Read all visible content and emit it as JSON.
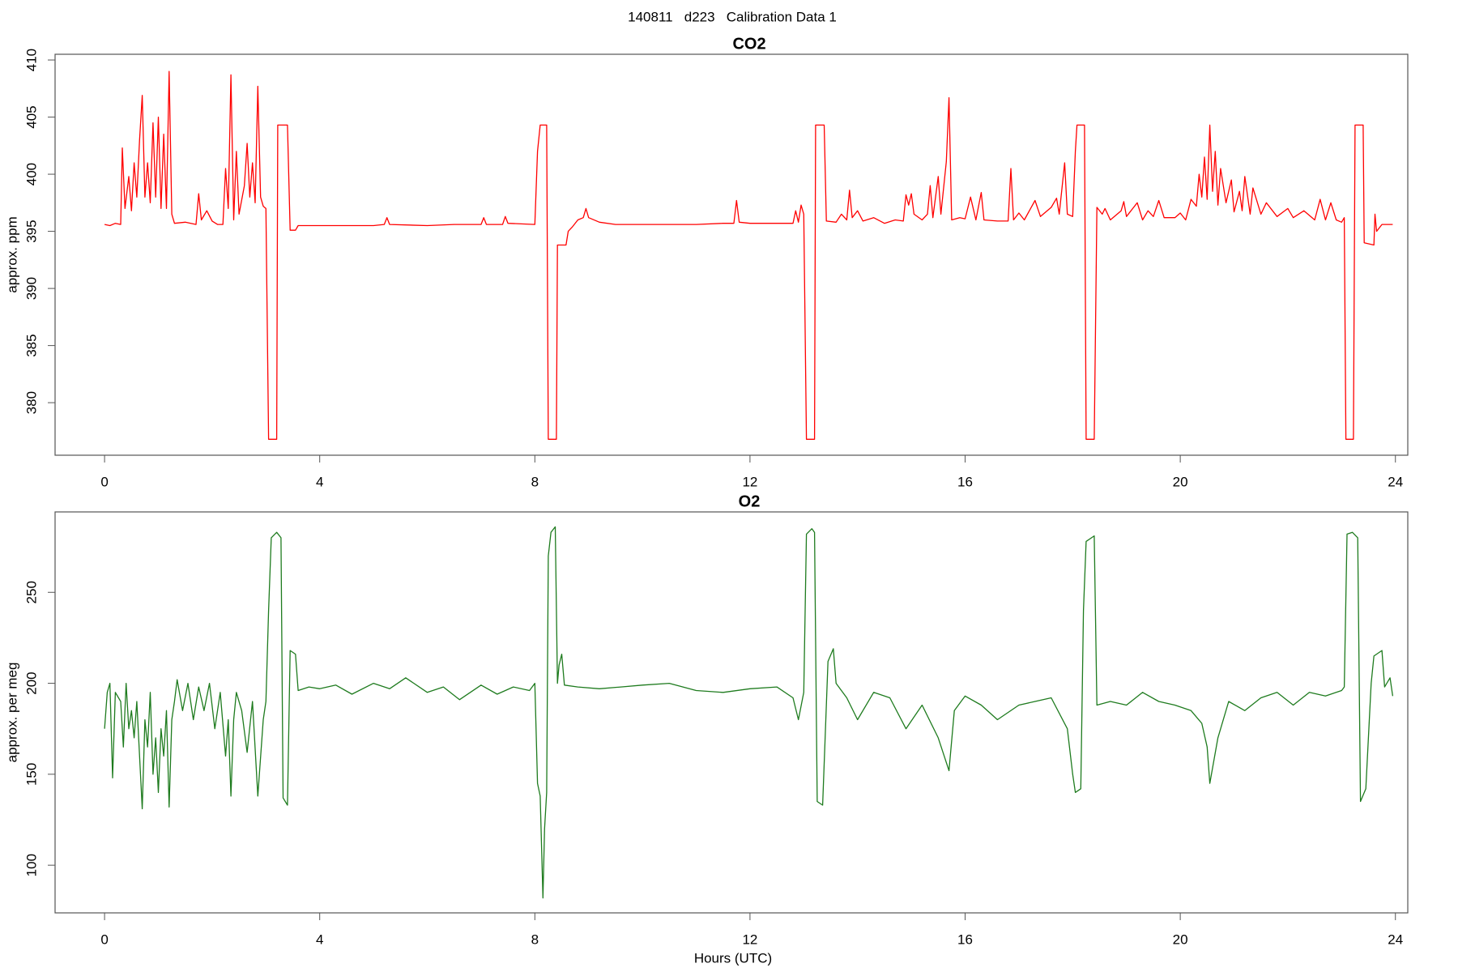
{
  "title": "140811   d223   Calibration Data 1",
  "chart_data": [
    {
      "type": "line",
      "title": "CO2",
      "ylabel": "approx. ppm",
      "xlim": [
        -0.92,
        24.23
      ],
      "xticks": [
        0,
        4,
        8,
        12,
        16,
        20,
        24
      ],
      "ylim": [
        375.4,
        410.5
      ],
      "yticks": [
        380,
        385,
        390,
        395,
        400,
        405,
        410
      ],
      "x": [
        0,
        0.1,
        0.2,
        0.3,
        0.33,
        0.38,
        0.45,
        0.5,
        0.55,
        0.6,
        0.65,
        0.7,
        0.75,
        0.8,
        0.85,
        0.9,
        0.95,
        1.0,
        1.05,
        1.1,
        1.15,
        1.2,
        1.25,
        1.3,
        1.5,
        1.7,
        1.75,
        1.8,
        1.9,
        2.0,
        2.1,
        2.2,
        2.25,
        2.3,
        2.35,
        2.4,
        2.45,
        2.5,
        2.6,
        2.65,
        2.7,
        2.75,
        2.8,
        2.85,
        2.9,
        2.95,
        3.0,
        3.05,
        3.2,
        3.22,
        3.4,
        3.45,
        3.55,
        3.6,
        4.0,
        4.5,
        5.0,
        5.2,
        5.25,
        5.3,
        6,
        6.5,
        7.0,
        7.05,
        7.1,
        7.4,
        7.45,
        7.5,
        8.0,
        8.05,
        8.1,
        8.22,
        8.25,
        8.4,
        8.42,
        8.58,
        8.62,
        8.7,
        8.8,
        8.9,
        8.95,
        9.0,
        9.2,
        9.5,
        10,
        10.5,
        11,
        11.5,
        11.7,
        11.75,
        11.8,
        12.0,
        12.5,
        12.8,
        12.85,
        12.9,
        12.95,
        13.0,
        13.05,
        13.2,
        13.22,
        13.38,
        13.42,
        13.6,
        13.7,
        13.8,
        13.85,
        13.9,
        14.0,
        14.1,
        14.3,
        14.5,
        14.7,
        14.85,
        14.9,
        14.95,
        15.0,
        15.05,
        15.2,
        15.3,
        15.35,
        15.4,
        15.5,
        15.55,
        15.65,
        15.7,
        15.75,
        15.9,
        16.0,
        16.1,
        16.2,
        16.3,
        16.35,
        16.6,
        16.8,
        16.85,
        16.9,
        17.0,
        17.1,
        17.3,
        17.4,
        17.6,
        17.7,
        17.75,
        17.85,
        17.9,
        18.0,
        18.05,
        18.08,
        18.22,
        18.25,
        18.4,
        18.45,
        18.55,
        18.6,
        18.7,
        18.9,
        18.95,
        19.0,
        19.2,
        19.3,
        19.4,
        19.5,
        19.6,
        19.7,
        19.9,
        20.0,
        20.1,
        20.2,
        20.3,
        20.35,
        20.4,
        20.45,
        20.5,
        20.55,
        20.6,
        20.65,
        20.7,
        20.75,
        20.85,
        20.95,
        21.0,
        21.1,
        21.15,
        21.2,
        21.3,
        21.35,
        21.5,
        21.6,
        21.8,
        22.0,
        22.1,
        22.3,
        22.5,
        22.6,
        22.7,
        22.8,
        22.9,
        23.0,
        23.05,
        23.08,
        23.22,
        23.25,
        23.4,
        23.42,
        23.6,
        23.62,
        23.65,
        23.7,
        23.75,
        23.95
      ],
      "series": [
        {
          "color": "#ff0000",
          "values": [
            395.6,
            395.5,
            395.7,
            395.6,
            402.3,
            397,
            399.8,
            396.8,
            401,
            398,
            403,
            406.9,
            398,
            401,
            397.5,
            404.5,
            398,
            405,
            397,
            403.5,
            397,
            409,
            396.5,
            395.7,
            395.8,
            395.6,
            398.3,
            396,
            396.8,
            395.9,
            395.6,
            395.6,
            400.5,
            397,
            408.7,
            396,
            402,
            396.5,
            399,
            402.7,
            398,
            401,
            397.5,
            407.7,
            398,
            397.2,
            397,
            376.8,
            376.8,
            404.3,
            404.3,
            395.1,
            395.1,
            395.5,
            395.5,
            395.5,
            395.5,
            395.6,
            396.2,
            395.6,
            395.5,
            395.6,
            395.6,
            396.2,
            395.6,
            395.6,
            396.3,
            395.7,
            395.6,
            402,
            404.3,
            404.3,
            376.8,
            376.8,
            393.8,
            393.8,
            395,
            395.4,
            396,
            396.2,
            397,
            396.2,
            395.8,
            395.6,
            395.6,
            395.6,
            395.6,
            395.7,
            395.7,
            397.7,
            395.8,
            395.7,
            395.7,
            395.7,
            396.8,
            395.8,
            397.3,
            396.5,
            376.8,
            376.8,
            404.3,
            404.3,
            395.9,
            395.8,
            396.5,
            396,
            398.6,
            396.2,
            396.8,
            395.9,
            396.2,
            395.7,
            396,
            395.9,
            398.2,
            397.3,
            398.3,
            396.5,
            396,
            396.5,
            399,
            396.2,
            399.8,
            396.5,
            401.1,
            406.7,
            396,
            396.2,
            396.1,
            398,
            396,
            398.4,
            396,
            395.9,
            395.9,
            400.5,
            396,
            396.6,
            396,
            397.7,
            396.3,
            397.1,
            397.9,
            396.5,
            401,
            396.5,
            396.3,
            402,
            404.3,
            404.3,
            376.8,
            376.8,
            397.1,
            396.5,
            397,
            396,
            396.8,
            397.6,
            396.3,
            397.5,
            396,
            396.8,
            396.3,
            397.7,
            396.2,
            396.2,
            396.6,
            396,
            397.8,
            397.2,
            400,
            398,
            401.5,
            397.8,
            404.3,
            398.5,
            402,
            397.3,
            400.5,
            397.5,
            399.5,
            396.7,
            398.5,
            396.8,
            399.8,
            396.5,
            398.8,
            396.5,
            397.5,
            396.3,
            397,
            396.2,
            396.8,
            396,
            397.8,
            396,
            397.5,
            396,
            395.8,
            396.2,
            376.8,
            376.8,
            404.3,
            404.3,
            394,
            393.8,
            396.5,
            395,
            395.3,
            395.6,
            395.6
          ]
        }
      ]
    },
    {
      "type": "line",
      "title": "O2",
      "ylabel": "approx. per meg",
      "xlabel": "Hours (UTC)",
      "xlim": [
        -0.92,
        24.23
      ],
      "xticks": [
        0,
        4,
        8,
        12,
        16,
        20,
        24
      ],
      "ylim": [
        73.8,
        294.2
      ],
      "yticks": [
        100,
        150,
        200,
        250
      ],
      "x": [
        0,
        0.05,
        0.1,
        0.15,
        0.2,
        0.3,
        0.35,
        0.4,
        0.45,
        0.5,
        0.55,
        0.6,
        0.7,
        0.75,
        0.8,
        0.85,
        0.9,
        0.95,
        1.0,
        1.05,
        1.1,
        1.15,
        1.2,
        1.25,
        1.3,
        1.35,
        1.45,
        1.55,
        1.65,
        1.75,
        1.85,
        1.95,
        2.05,
        2.15,
        2.25,
        2.3,
        2.35,
        2.4,
        2.45,
        2.55,
        2.65,
        2.75,
        2.85,
        2.95,
        3.0,
        3.05,
        3.1,
        3.2,
        3.28,
        3.32,
        3.4,
        3.45,
        3.55,
        3.6,
        3.8,
        4.0,
        4.3,
        4.6,
        5.0,
        5.3,
        5.6,
        6.0,
        6.3,
        6.6,
        7.0,
        7.3,
        7.6,
        7.9,
        8.0,
        8.05,
        8.1,
        8.15,
        8.18,
        8.22,
        8.25,
        8.3,
        8.38,
        8.42,
        8.45,
        8.5,
        8.55,
        8.8,
        9.2,
        9.6,
        10.0,
        10.5,
        11.0,
        11.5,
        12.0,
        12.5,
        12.8,
        12.9,
        13.0,
        13.05,
        13.15,
        13.2,
        13.25,
        13.35,
        13.45,
        13.55,
        13.6,
        13.8,
        14.0,
        14.3,
        14.6,
        14.9,
        15.2,
        15.5,
        15.7,
        15.8,
        16.0,
        16.3,
        16.6,
        17.0,
        17.3,
        17.6,
        17.9,
        18.0,
        18.05,
        18.15,
        18.2,
        18.25,
        18.4,
        18.45,
        18.7,
        19.0,
        19.3,
        19.6,
        19.9,
        20.2,
        20.4,
        20.5,
        20.55,
        20.7,
        20.9,
        21.2,
        21.5,
        21.8,
        22.1,
        22.4,
        22.7,
        23.0,
        23.05,
        23.1,
        23.2,
        23.3,
        23.35,
        23.45,
        23.55,
        23.6,
        23.75,
        23.8,
        23.9,
        23.95
      ],
      "series": [
        {
          "color": "#1e7b1e",
          "values": [
            175,
            195,
            200,
            148,
            195,
            190,
            165,
            200,
            175,
            185,
            170,
            190,
            131,
            180,
            165,
            195,
            150,
            170,
            140,
            175,
            160,
            185,
            132,
            180,
            190,
            202,
            185,
            200,
            180,
            198,
            185,
            200,
            175,
            195,
            160,
            180,
            138,
            180,
            195,
            185,
            162,
            190,
            138,
            180,
            190,
            240,
            280,
            283,
            280,
            137,
            133,
            218,
            216,
            196,
            198,
            197,
            199,
            194,
            200,
            197,
            203,
            195,
            198,
            191,
            199,
            194,
            198,
            196,
            200,
            145,
            138,
            82,
            120,
            140,
            270,
            283,
            286,
            200,
            210,
            216,
            199,
            198,
            197,
            198,
            199,
            200,
            196,
            195,
            197,
            198,
            192,
            180,
            195,
            282,
            285,
            283,
            135,
            133,
            212,
            219,
            200,
            192,
            180,
            195,
            192,
            175,
            188,
            170,
            152,
            185,
            193,
            188,
            180,
            188,
            190,
            192,
            175,
            150,
            140,
            142,
            240,
            278,
            281,
            188,
            190,
            188,
            195,
            190,
            188,
            185,
            178,
            165,
            145,
            170,
            190,
            185,
            192,
            195,
            188,
            195,
            193,
            196,
            198,
            282,
            283,
            280,
            135,
            142,
            200,
            215,
            218,
            198,
            203,
            193
          ]
        }
      ]
    }
  ]
}
